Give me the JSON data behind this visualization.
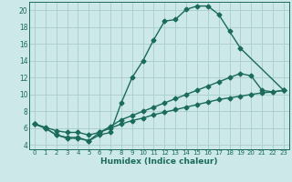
{
  "xlabel": "Humidex (Indice chaleur)",
  "bg_color": "#cce8e8",
  "grid_color": "#aacccc",
  "line_color": "#1a6b5a",
  "xlim": [
    -0.5,
    23.5
  ],
  "ylim": [
    3.5,
    21.0
  ],
  "xticks": [
    0,
    1,
    2,
    3,
    4,
    5,
    6,
    7,
    8,
    9,
    10,
    11,
    12,
    13,
    14,
    15,
    16,
    17,
    18,
    19,
    20,
    21,
    22,
    23
  ],
  "yticks": [
    4,
    6,
    8,
    10,
    12,
    14,
    16,
    18,
    20
  ],
  "line1_x": [
    0,
    1,
    2,
    3,
    4,
    5,
    6,
    7,
    8,
    9,
    10,
    11,
    12,
    13,
    14,
    15,
    16,
    17,
    18,
    19,
    23
  ],
  "line1_y": [
    6.5,
    6.0,
    5.2,
    4.9,
    4.9,
    4.5,
    5.2,
    5.5,
    9.0,
    12.0,
    14.0,
    16.5,
    18.7,
    18.9,
    20.1,
    20.5,
    20.5,
    19.5,
    17.5,
    15.5,
    10.5
  ],
  "line2_x": [
    0,
    1,
    2,
    3,
    4,
    5,
    6,
    7,
    8,
    9,
    10,
    11,
    12,
    13,
    14,
    15,
    16,
    17,
    18,
    19,
    20,
    21,
    22,
    23
  ],
  "line2_y": [
    6.5,
    6.1,
    5.7,
    5.5,
    5.5,
    5.2,
    5.5,
    6.0,
    6.5,
    6.9,
    7.2,
    7.6,
    7.9,
    8.2,
    8.5,
    8.8,
    9.1,
    9.4,
    9.6,
    9.8,
    10.0,
    10.2,
    10.3,
    10.5
  ],
  "line3_x": [
    0,
    1,
    2,
    3,
    4,
    5,
    6,
    7,
    8,
    9,
    10,
    11,
    12,
    13,
    14,
    15,
    16,
    17,
    18,
    19,
    20,
    21,
    22,
    23
  ],
  "line3_y": [
    6.5,
    6.0,
    5.2,
    4.8,
    4.8,
    4.5,
    5.5,
    6.2,
    7.0,
    7.5,
    8.0,
    8.5,
    9.0,
    9.5,
    10.0,
    10.5,
    11.0,
    11.5,
    12.0,
    12.5,
    12.2,
    10.5,
    10.3,
    10.5
  ],
  "marker": "D",
  "marker_size": 2.5,
  "linewidth": 1.0
}
